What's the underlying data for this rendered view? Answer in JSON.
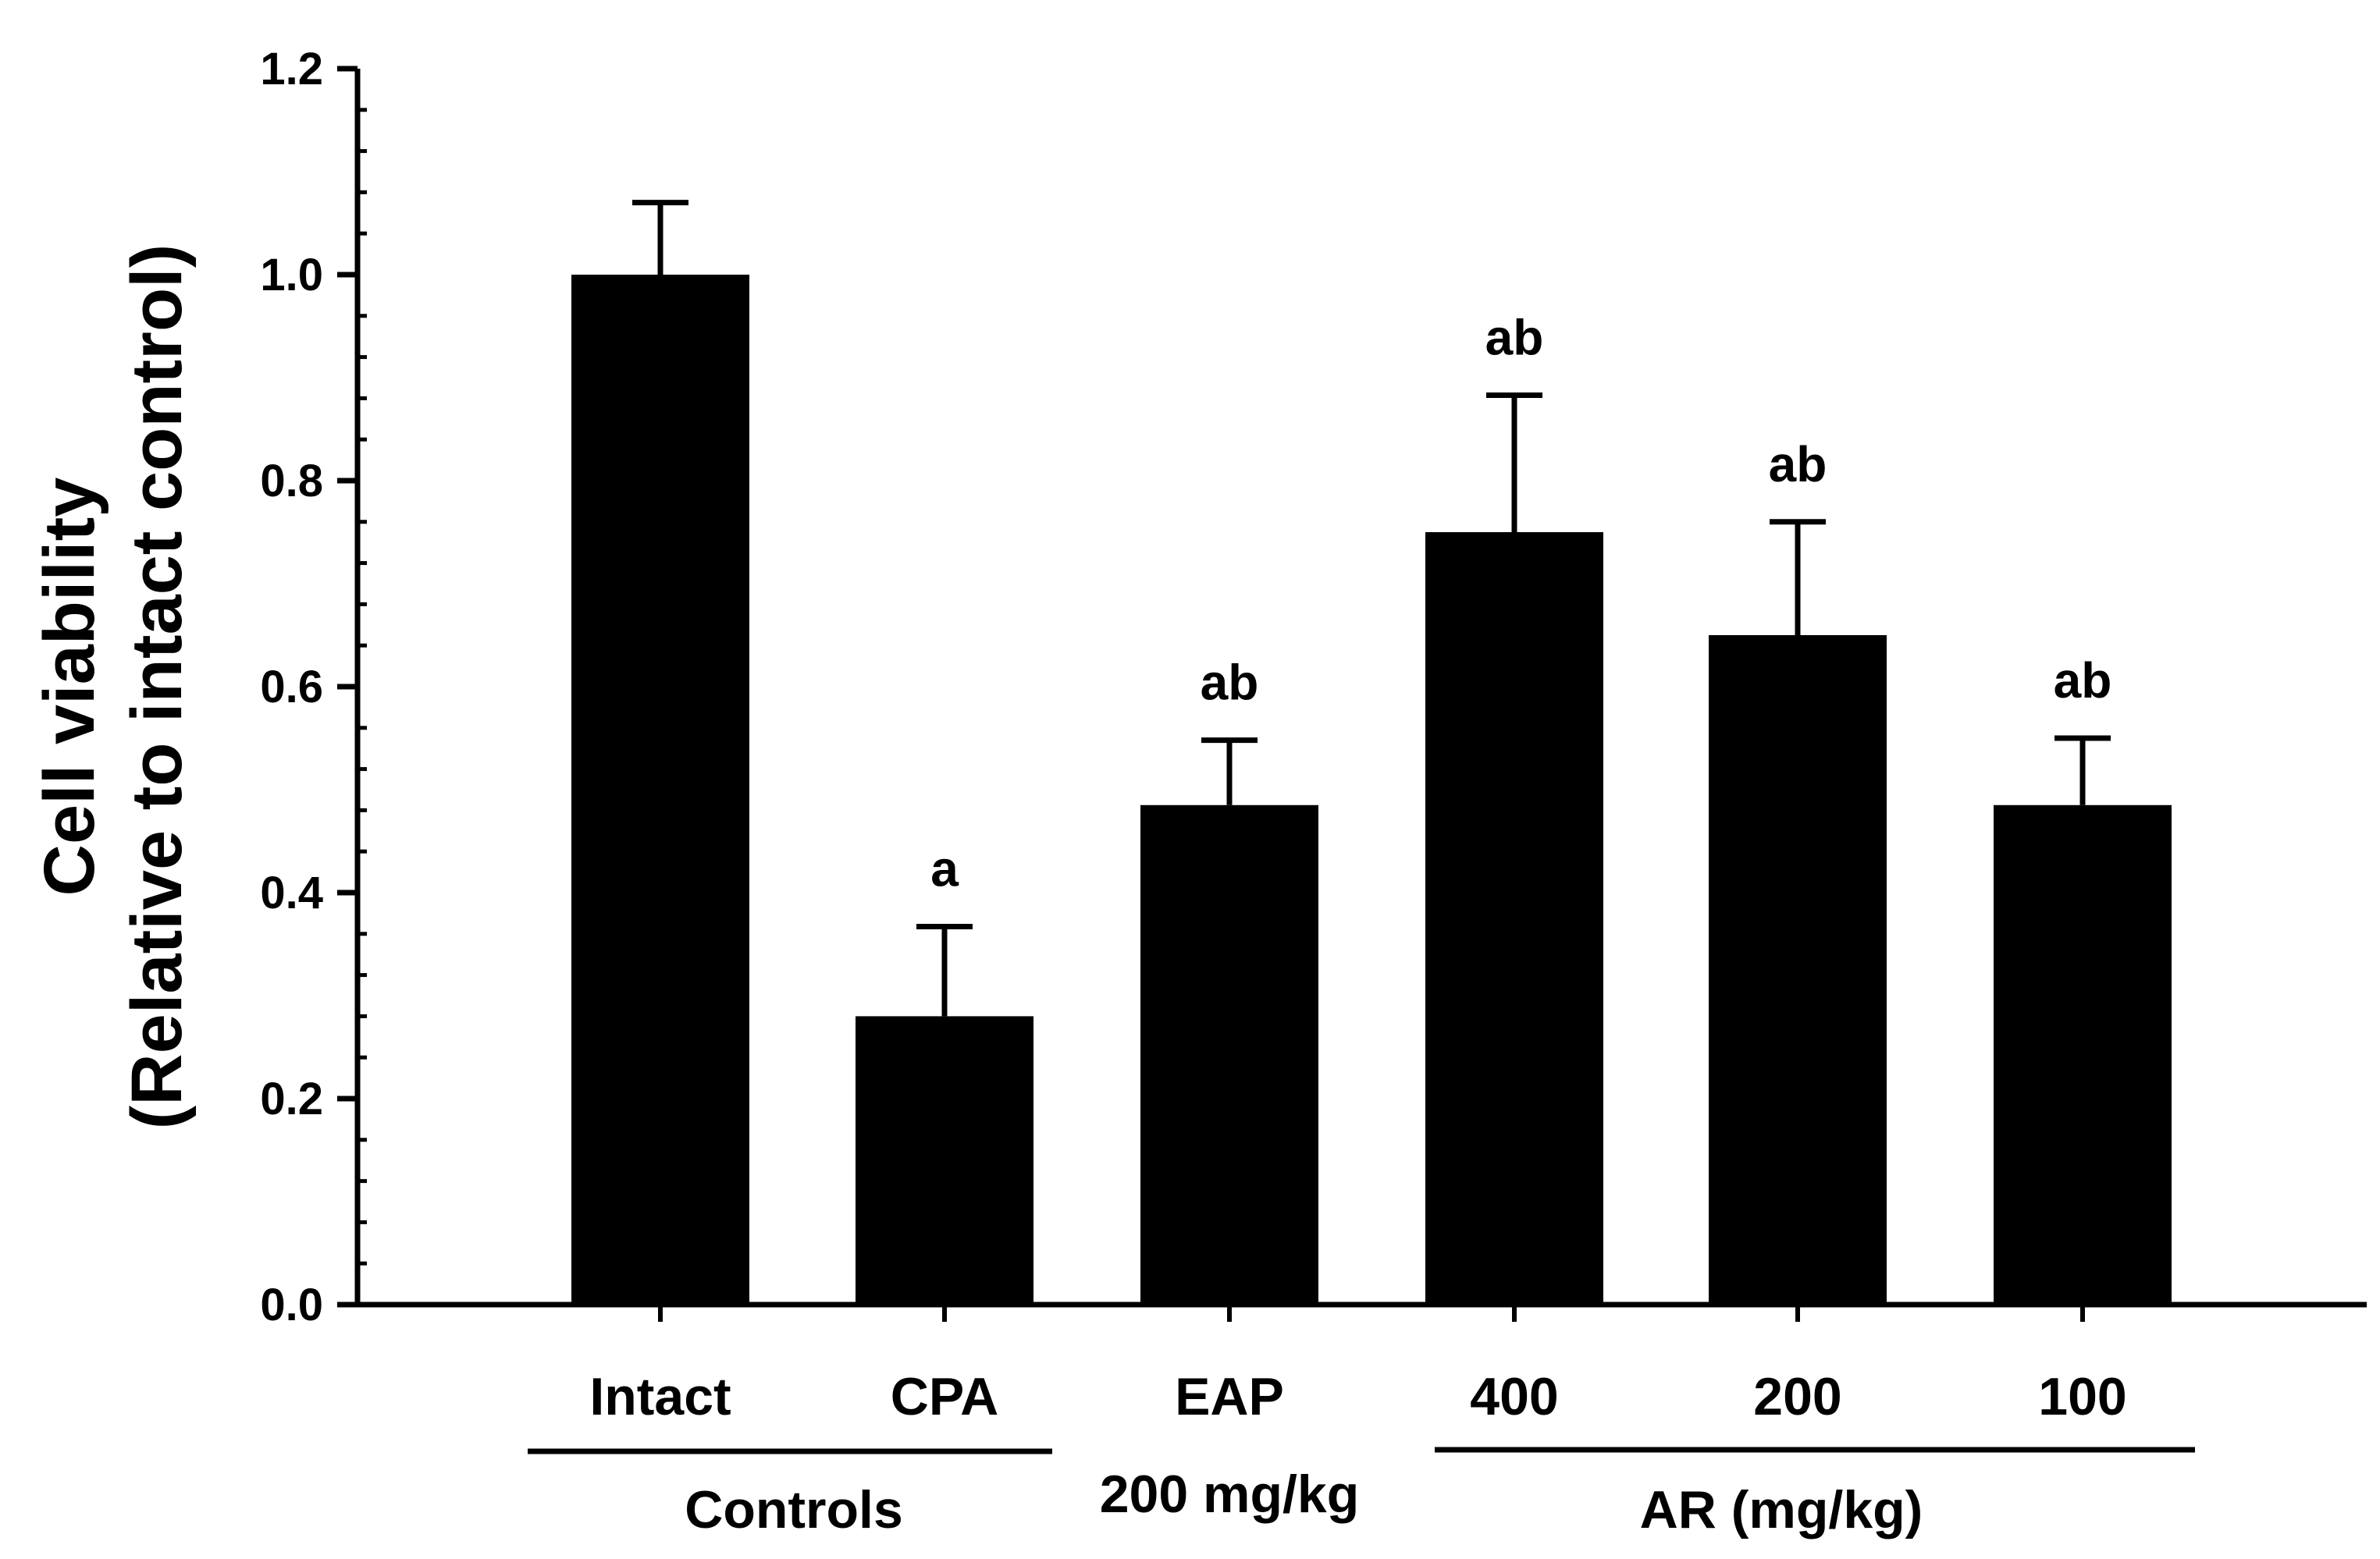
{
  "chart_data": {
    "type": "bar",
    "title": "",
    "ylabel_line1": "Cell viability",
    "ylabel_line2": "(Relative to intact control)",
    "ylim": [
      0,
      1.2
    ],
    "yticks": [
      "0.0",
      "0.2",
      "0.4",
      "0.6",
      "0.8",
      "1.0",
      "1.2"
    ],
    "categories": [
      "Intact",
      "CPA",
      "EAP",
      "400",
      "200",
      "100"
    ],
    "values": [
      1.0,
      0.28,
      0.485,
      0.75,
      0.65,
      0.485
    ],
    "errors": [
      0.07,
      0.087,
      0.063,
      0.133,
      0.11,
      0.065
    ],
    "significance": [
      "",
      "a",
      "ab",
      "ab",
      "ab",
      "ab"
    ],
    "bar_color": "#000000",
    "groups": {
      "controls": "Controls",
      "eap_dose": "200 mg/kg",
      "ar": "AR (mg/kg)"
    }
  }
}
